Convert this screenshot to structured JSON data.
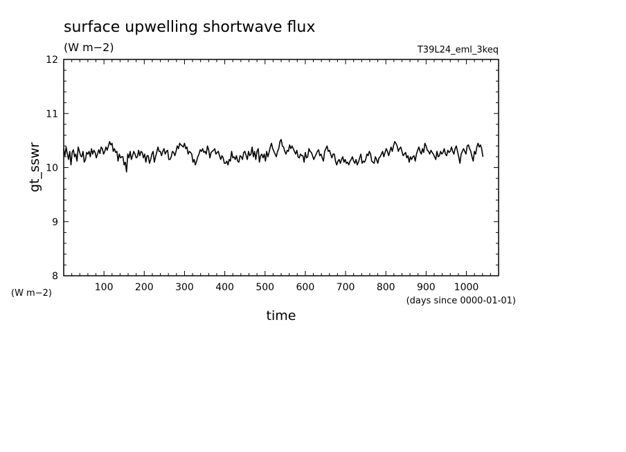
{
  "chart_data": {
    "type": "line",
    "title": "surface upwelling shortwave flux",
    "title_units": "(W m−2)",
    "experiment": "T39L24_eml_3keq",
    "ylabel": "gt_sswr",
    "ylabel_units": "(W m−2)",
    "xlabel": "time",
    "xlabel_units": "(days since 0000-01-01)",
    "xlim": [
      0,
      1080
    ],
    "ylim": [
      8,
      12
    ],
    "x_ticks": [
      100,
      200,
      300,
      400,
      500,
      600,
      700,
      800,
      900,
      1000
    ],
    "y_ticks": [
      8,
      9,
      10,
      11,
      12
    ],
    "line_color": "#000000",
    "series": [
      {
        "x_start": 0,
        "x_step": 3,
        "values": [
          10.35,
          10.22,
          10.38,
          10.25,
          10.15,
          10.3,
          10.05,
          10.28,
          10.33,
          10.2,
          10.25,
          10.12,
          10.38,
          10.3,
          10.22,
          10.2,
          10.3,
          10.1,
          10.15,
          10.28,
          10.25,
          10.3,
          10.2,
          10.35,
          10.25,
          10.32,
          10.28,
          10.18,
          10.25,
          10.33,
          10.26,
          10.38,
          10.35,
          10.25,
          10.3,
          10.38,
          10.32,
          10.4,
          10.48,
          10.42,
          10.45,
          10.3,
          10.35,
          10.28,
          10.3,
          10.12,
          10.25,
          10.18,
          10.2,
          10.2,
          10.05,
          10.1,
          9.92,
          10.25,
          10.18,
          10.3,
          10.15,
          10.22,
          10.3,
          10.25,
          10.18,
          10.2,
          10.32,
          10.22,
          10.3,
          10.28,
          10.18,
          10.25,
          10.1,
          10.22,
          10.22,
          10.08,
          10.15,
          10.25,
          10.3,
          10.1,
          10.2,
          10.28,
          10.38,
          10.3,
          10.3,
          10.22,
          10.3,
          10.35,
          10.25,
          10.3,
          10.32,
          10.15,
          10.15,
          10.2,
          10.3,
          10.28,
          10.22,
          10.3,
          10.4,
          10.35,
          10.45,
          10.42,
          10.4,
          10.38,
          10.45,
          10.35,
          10.38,
          10.25,
          10.3,
          10.28,
          10.25,
          10.1,
          10.15,
          10.05,
          10.12,
          10.2,
          10.25,
          10.33,
          10.3,
          10.35,
          10.28,
          10.3,
          10.25,
          10.4,
          10.33,
          10.18,
          10.28,
          10.3,
          10.32,
          10.35,
          10.25,
          10.28,
          10.3,
          10.22,
          10.15,
          10.22,
          10.18,
          10.08,
          10.08,
          10.12,
          10.05,
          10.15,
          10.12,
          10.3,
          10.18,
          10.2,
          10.15,
          10.22,
          10.12,
          10.1,
          10.22,
          10.2,
          10.15,
          10.28,
          10.3,
          10.22,
          10.15,
          10.3,
          10.22,
          10.25,
          10.38,
          10.2,
          10.3,
          10.15,
          10.3,
          10.35,
          10.1,
          10.22,
          10.25,
          10.18,
          10.25,
          10.12,
          10.3,
          10.2,
          10.28,
          10.38,
          10.45,
          10.35,
          10.3,
          10.25,
          10.2,
          10.3,
          10.35,
          10.48,
          10.52,
          10.4,
          10.38,
          10.3,
          10.25,
          10.32,
          10.3,
          10.42,
          10.35,
          10.4,
          10.35,
          10.3,
          10.25,
          10.32,
          10.2,
          10.18,
          10.25,
          10.22,
          10.22,
          10.1,
          10.28,
          10.18,
          10.2,
          10.35,
          10.3,
          10.28,
          10.22,
          10.15,
          10.2,
          10.25,
          10.3,
          10.33,
          10.22,
          10.25,
          10.18,
          10.12,
          10.3,
          10.35,
          10.4,
          10.3,
          10.32,
          10.25,
          10.18,
          10.25,
          10.25,
          10.12,
          10.05,
          10.12,
          10.15,
          10.08,
          10.15,
          10.2,
          10.1,
          10.15,
          10.08,
          10.1,
          10.05,
          10.12,
          10.15,
          10.2,
          10.12,
          10.08,
          10.15,
          10.05,
          10.1,
          10.18,
          10.25,
          10.08,
          10.12,
          10.1,
          10.15,
          10.25,
          10.22,
          10.3,
          10.25,
          10.12,
          10.1,
          10.08,
          10.2,
          10.15,
          10.08,
          10.18,
          10.2,
          10.25,
          10.3,
          10.2,
          10.28,
          10.35,
          10.3,
          10.22,
          10.3,
          10.38,
          10.3,
          10.4,
          10.48,
          10.45,
          10.4,
          10.3,
          10.35,
          10.38,
          10.3,
          10.22,
          10.25,
          10.28,
          10.18,
          10.22,
          10.1,
          10.2,
          10.15,
          10.2,
          10.22,
          10.12,
          10.25,
          10.32,
          10.38,
          10.3,
          10.25,
          10.35,
          10.28,
          10.45,
          10.4,
          10.32,
          10.3,
          10.25,
          10.32,
          10.28,
          10.25,
          10.2,
          10.15,
          10.3,
          10.2,
          10.22,
          10.3,
          10.25,
          10.28,
          10.35,
          10.25,
          10.22,
          10.32,
          10.28,
          10.3,
          10.38,
          10.3,
          10.25,
          10.35,
          10.4,
          10.3,
          10.2,
          10.08,
          10.25,
          10.3,
          10.35,
          10.3,
          10.25,
          10.4,
          10.42,
          10.35,
          10.3,
          10.2,
          10.12,
          10.3,
          10.25,
          10.38,
          10.45,
          10.38,
          10.42,
          10.35,
          10.2
        ]
      }
    ]
  }
}
